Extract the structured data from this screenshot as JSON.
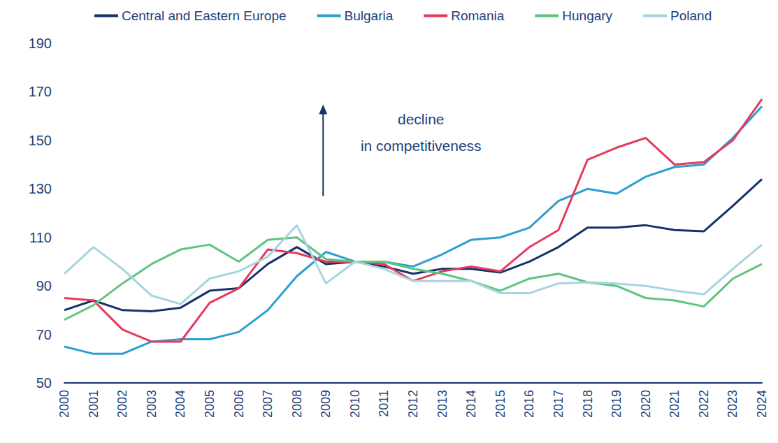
{
  "chart_data": {
    "type": "line",
    "annotation": [
      "decline",
      "in competitiveness"
    ],
    "categories": [
      "2000",
      "2001",
      "2002",
      "2003",
      "2004",
      "2005",
      "2006",
      "2007",
      "2008",
      "2009",
      "2010",
      "2011",
      "2012",
      "2013",
      "2014",
      "2015",
      "2016",
      "2017",
      "2018",
      "2019",
      "2020",
      "2021",
      "2022",
      "2023",
      "2024"
    ],
    "series": [
      {
        "name": "Central and Eastern Europe",
        "color": "#14336b",
        "values": [
          80,
          84,
          80,
          79.5,
          81,
          88,
          89,
          99,
          106,
          99,
          100,
          98,
          95,
          97,
          97,
          95.5,
          100,
          106,
          114,
          114,
          115,
          113,
          112.5,
          123,
          134
        ]
      },
      {
        "name": "Bulgaria",
        "color": "#2a9fd0",
        "values": [
          65,
          62,
          62,
          67,
          68,
          68,
          71,
          80,
          94,
          104,
          100,
          100,
          98,
          103,
          109,
          110,
          114,
          125,
          130,
          128,
          135,
          139,
          140,
          151,
          164
        ]
      },
      {
        "name": "Romania",
        "color": "#e63a5d",
        "values": [
          85,
          84,
          72,
          67,
          67,
          83,
          89,
          105,
          103.5,
          100,
          100,
          99,
          92,
          96,
          98,
          96,
          106,
          113,
          142,
          147,
          151,
          140,
          141,
          150,
          167
        ]
      },
      {
        "name": "Hungary",
        "color": "#5fc47f",
        "values": [
          76,
          82,
          91,
          99,
          105,
          107,
          100,
          109,
          110,
          101,
          100,
          100,
          97,
          95,
          92,
          88,
          93,
          95,
          91.5,
          90,
          85,
          84,
          81.5,
          93,
          99
        ]
      },
      {
        "name": "Poland",
        "color": "#a8d4e0",
        "values": [
          95,
          106,
          97,
          86,
          82.5,
          93,
          96,
          102,
          115,
          91,
          100,
          97,
          92,
          92,
          92,
          87,
          87,
          91,
          91.5,
          91,
          90,
          88,
          86.5,
          97,
          107
        ]
      }
    ],
    "ylim": [
      50,
      190
    ],
    "yticks": [
      50,
      70,
      90,
      110,
      130,
      150,
      170,
      190
    ],
    "grid": false,
    "legend": "top"
  }
}
